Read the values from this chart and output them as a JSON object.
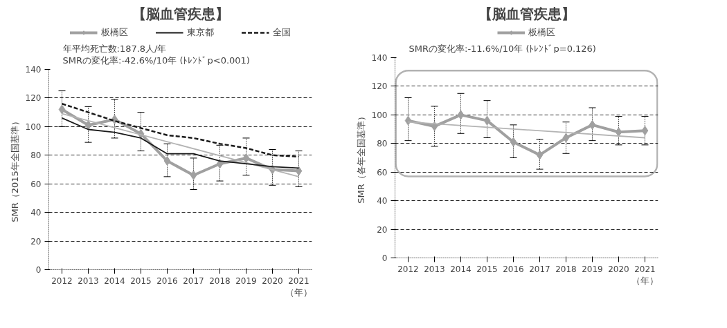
{
  "chart_data": [
    {
      "type": "line",
      "title": "【脳血管疾患】",
      "ylabel": "SMR（2015年全国基準）",
      "xlabel": "（年）",
      "annotations": [
        "年平均死亡数:187.8人/年",
        "SMRの変化率:-42.6%/10年 (ﾄﾚﾝﾄﾞp<0.001)"
      ],
      "categories": [
        "2012",
        "2013",
        "2014",
        "2015",
        "2016",
        "2017",
        "2018",
        "2019",
        "2020",
        "2021"
      ],
      "series": [
        {
          "name": "板橋区",
          "color": "#a0a0a0",
          "marker": "diamond",
          "line_style": "solid",
          "values": [
            112,
            101,
            105,
            95,
            76,
            66,
            74,
            78,
            70,
            69
          ],
          "errors": [
            [
              100,
              125
            ],
            [
              89,
              114
            ],
            [
              92,
              119
            ],
            [
              83,
              110
            ],
            [
              65,
              88
            ],
            [
              56,
              78
            ],
            [
              62,
              87
            ],
            [
              66,
              92
            ],
            [
              59,
              84
            ],
            [
              58,
              83
            ]
          ]
        },
        {
          "color": "#b4b4b4",
          "marker": "none",
          "line_style": "solid",
          "values": [
            109,
            null,
            null,
            null,
            null,
            null,
            null,
            null,
            null,
            65
          ]
        },
        {
          "name": "東京都",
          "color": "#1a1a1a",
          "marker": "none",
          "line_style": "solid",
          "values": [
            106,
            98,
            96,
            92,
            81,
            81,
            76,
            74,
            72,
            71
          ]
        },
        {
          "name": "全国",
          "color": "#1a1a1a",
          "marker": "none",
          "line_style": "dashed",
          "values": [
            116,
            110,
            104,
            99,
            94,
            92,
            88,
            85,
            80,
            79
          ]
        }
      ],
      "ylim": [
        0,
        140
      ],
      "yticks": [
        0,
        20,
        40,
        60,
        80,
        100,
        120,
        140
      ],
      "grid": "y",
      "legend": "top"
    },
    {
      "type": "line",
      "title": "【脳血管疾患】",
      "ylabel": "SMR（各年全国基準）",
      "xlabel": "（年）",
      "annotations": [
        "SMRの変化率:-11.6%/10年 (ﾄﾚﾝﾄﾞp=0.126)"
      ],
      "categories": [
        "2012",
        "2013",
        "2014",
        "2015",
        "2016",
        "2017",
        "2018",
        "2019",
        "2020",
        "2021"
      ],
      "series": [
        {
          "name": "板橋区",
          "color": "#a0a0a0",
          "marker": "diamond",
          "line_style": "solid",
          "values": [
            96,
            92,
            100,
            96,
            81,
            72,
            84,
            93,
            88,
            89
          ],
          "errors": [
            [
              82,
              112
            ],
            [
              78,
              106
            ],
            [
              87,
              115
            ],
            [
              84,
              110
            ],
            [
              70,
              93
            ],
            [
              62,
              83
            ],
            [
              73,
              95
            ],
            [
              82,
              105
            ],
            [
              79,
              99
            ],
            [
              79,
              99
            ]
          ]
        },
        {
          "color": "#b4b4b4",
          "marker": "none",
          "line_style": "solid",
          "values": [
            95,
            null,
            null,
            null,
            null,
            null,
            null,
            null,
            null,
            84
          ]
        }
      ],
      "ylim": [
        0,
        140
      ],
      "yticks": [
        0,
        20,
        40,
        60,
        80,
        100,
        120,
        140
      ],
      "grid": "y",
      "legend": "top"
    }
  ]
}
